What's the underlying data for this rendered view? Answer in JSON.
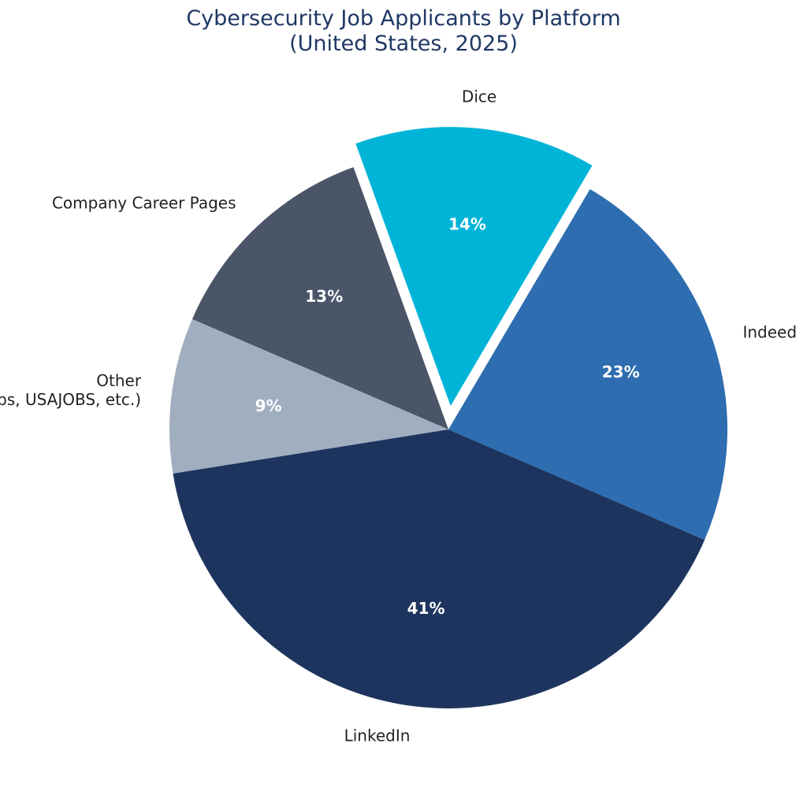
{
  "chart_data": {
    "type": "pie",
    "title_line1": "Cybersecurity Job Applicants by Platform",
    "title_line2": "(United States, 2025)",
    "slices": [
      {
        "label": "Dice",
        "label_lines": [
          "Dice"
        ],
        "value": 14,
        "pct_label": "14%",
        "color": "#00b4d8",
        "exploded": true
      },
      {
        "label": "Company Career Pages",
        "label_lines": [
          "Company Career Pages"
        ],
        "value": 13,
        "pct_label": "13%",
        "color": "#4a5568",
        "exploded": false
      },
      {
        "label": "Other (ClearanceJobs, USAJOBS, etc.)",
        "label_lines": [
          "Other",
          "(ClearanceJobs, USAJOBS, etc.)"
        ],
        "value": 9,
        "pct_label": "9%",
        "color": "#a0aec0",
        "exploded": false
      },
      {
        "label": "LinkedIn",
        "label_lines": [
          "LinkedIn"
        ],
        "value": 41,
        "pct_label": "41%",
        "color": "#1d355e",
        "exploded": false
      },
      {
        "label": "Indeed",
        "label_lines": [
          "Indeed"
        ],
        "value": 23,
        "pct_label": "23%",
        "color": "#2e6db0",
        "exploded": false
      }
    ]
  }
}
